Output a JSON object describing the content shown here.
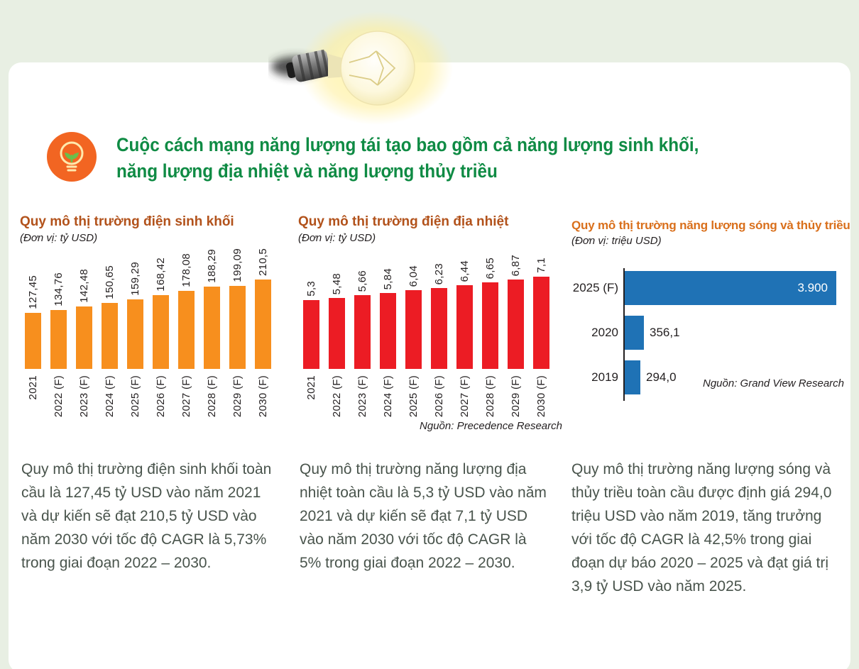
{
  "page": {
    "bg_color": "#e8efe3",
    "card_color": "#ffffff"
  },
  "header": {
    "icon": "bulb-plant-icon",
    "icon_bg": "#f26522",
    "title_color": "#0f8b44",
    "title_line1": "Cuộc cách mạng năng lượng tái tạo bao gồm cả năng lượng sinh khối,",
    "title_line2": "năng lượng địa nhiệt và năng lượng thủy triều"
  },
  "chart_data": [
    {
      "type": "bar",
      "title": "Quy mô thị trường điện sinh khối",
      "subtitle": "(Đơn vị: tỷ USD)",
      "title_color": "#b2521b",
      "bar_color": "#f78f1e",
      "categories": [
        "2021",
        "2022 (F)",
        "2023 (F)",
        "2024 (F)",
        "2025 (F)",
        "2026 (F)",
        "2027 (F)",
        "2028 (F)",
        "2029 (F)",
        "2030 (F)"
      ],
      "values": [
        127.45,
        134.76,
        142.48,
        150.65,
        159.29,
        168.42,
        178.08,
        188.29,
        199.09,
        210.5
      ],
      "value_labels": [
        "127,45",
        "134,76",
        "142,48",
        "150,65",
        "159,29",
        "168,42",
        "178,08",
        "188,29",
        "199,09",
        "210,5"
      ],
      "ylim": [
        0,
        210.5
      ],
      "grid": false,
      "source": ""
    },
    {
      "type": "bar",
      "title": "Quy mô thị trường điện địa nhiệt",
      "subtitle": "(Đơn vị: tỷ USD)",
      "title_color": "#b2521b",
      "bar_color": "#ec1c24",
      "categories": [
        "2021",
        "2022 (F)",
        "2023 (F)",
        "2024 (F)",
        "2025 (F)",
        "2026 (F)",
        "2027 (F)",
        "2028 (F)",
        "2029 (F)",
        "2030 (F)"
      ],
      "values": [
        5.3,
        5.48,
        5.66,
        5.84,
        6.04,
        6.23,
        6.44,
        6.65,
        6.87,
        7.1
      ],
      "value_labels": [
        "5,3",
        "5,48",
        "5,66",
        "5,84",
        "6,04",
        "6,23",
        "6,44",
        "6,65",
        "6,87",
        "7,1"
      ],
      "ylim": [
        0,
        7.1
      ],
      "grid": false,
      "source": "Nguồn: Precedence Research"
    },
    {
      "type": "bar-horizontal",
      "title": "Quy mô thị trường năng lượng sóng và thủy triều",
      "subtitle": "(Đơn vị: triệu USD)",
      "title_color": "#d96f1b",
      "bar_color": "#1f72b5",
      "categories": [
        "2025 (F)",
        "2020",
        "2019"
      ],
      "values": [
        3900,
        356.1,
        294.0
      ],
      "value_labels": [
        "3.900",
        "356,1",
        "294,0"
      ],
      "xlim": [
        0,
        3900
      ],
      "grid": false,
      "source": "Nguồn: Grand View Research"
    }
  ],
  "paragraphs": [
    "Quy mô thị trường điện sinh khối toàn cầu là 127,45 tỷ USD vào năm 2021 và dự kiến sẽ đạt 210,5 tỷ USD vào năm 2030 với tốc độ CAGR là 5,73% trong giai đoạn 2022 – 2030.",
    "Quy mô thị trường năng lượng địa nhiệt toàn cầu là 5,3 tỷ USD vào năm 2021 và dự kiến sẽ đạt 7,1 tỷ USD vào năm 2030 với tốc độ CAGR là 5% trong giai đoạn 2022 – 2030.",
    "Quy mô thị trường năng lượng sóng và thủy triều toàn cầu được định giá 294,0 triệu USD vào năm 2019, tăng trưởng với tốc độ CAGR là 42,5% trong giai đoạn dự báo 2020 – 2025 và đạt giá trị 3,9 tỷ USD vào năm 2025."
  ]
}
